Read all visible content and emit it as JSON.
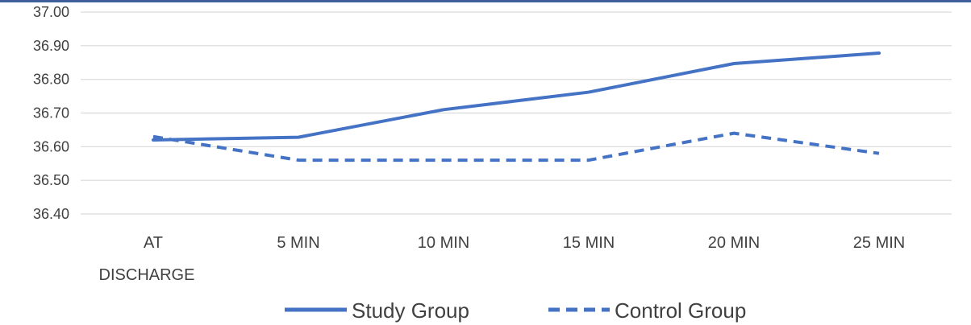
{
  "chart_data": {
    "type": "line",
    "categories": [
      "AT DISCHARGE",
      "5 MIN",
      "10 MIN",
      "15 MIN",
      "20 MIN",
      "25 MIN"
    ],
    "ylim": [
      36.4,
      37.0
    ],
    "yticks": [
      "36.40",
      "36.50",
      "36.60",
      "36.70",
      "36.80",
      "36.90",
      "37.00"
    ],
    "grid": true,
    "legend_position": "bottom",
    "series": [
      {
        "name": "Study Group",
        "style": "solid",
        "color": "#4472c4",
        "values": [
          36.62,
          36.628,
          36.71,
          36.762,
          36.847,
          36.878
        ]
      },
      {
        "name": "Control Group",
        "style": "dashed",
        "color": "#4472c4",
        "values": [
          36.63,
          36.56,
          36.56,
          36.56,
          36.64,
          36.58
        ]
      }
    ]
  },
  "colors": {
    "accent": "#4472c4",
    "grid": "#d9d9d9",
    "text": "#404040",
    "top_rule": "#3f5f9a"
  }
}
